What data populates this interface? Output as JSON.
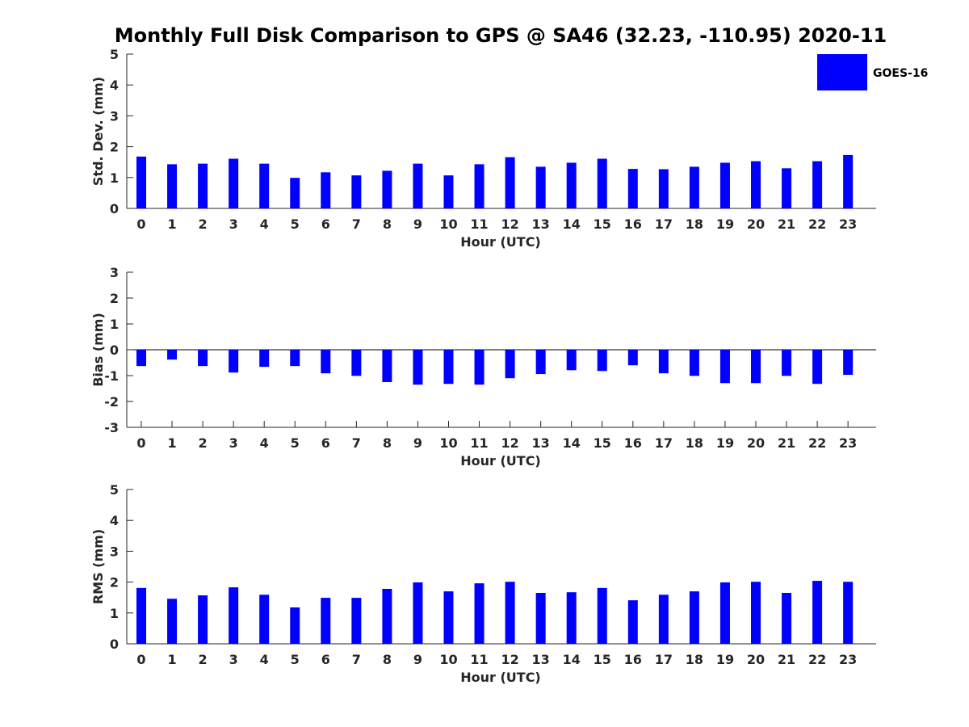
{
  "figure": {
    "title": "Monthly Full Disk Comparison to GPS @ SA46 (32.23, -110.95) 2020-11"
  },
  "legend": {
    "label": "GOES-16",
    "color": "#0000ff"
  },
  "chart_data": [
    {
      "type": "bar",
      "name": "std-dev",
      "xlabel": "Hour (UTC)",
      "ylabel": "Std. Dev. (mm)",
      "ylim": [
        0,
        5
      ],
      "yticks": [
        0,
        1,
        2,
        3,
        4,
        5
      ],
      "grid": false,
      "legend": "top-right",
      "categories": [
        "0",
        "1",
        "2",
        "3",
        "4",
        "5",
        "6",
        "7",
        "8",
        "9",
        "10",
        "11",
        "12",
        "13",
        "14",
        "15",
        "16",
        "17",
        "18",
        "19",
        "20",
        "21",
        "22",
        "23"
      ],
      "series": [
        {
          "name": "GOES-16",
          "color": "#0000ff",
          "values": [
            1.68,
            1.43,
            1.45,
            1.61,
            1.45,
            0.99,
            1.17,
            1.07,
            1.22,
            1.45,
            1.07,
            1.43,
            1.66,
            1.35,
            1.48,
            1.61,
            1.28,
            1.27,
            1.35,
            1.48,
            1.53,
            1.3,
            1.53,
            1.73
          ]
        }
      ]
    },
    {
      "type": "bar",
      "name": "bias",
      "xlabel": "Hour (UTC)",
      "ylabel": "Bias (mm)",
      "ylim": [
        -3,
        3
      ],
      "yticks": [
        -3,
        -2,
        -1,
        0,
        1,
        2,
        3
      ],
      "grid": false,
      "categories": [
        "0",
        "1",
        "2",
        "3",
        "4",
        "5",
        "6",
        "7",
        "8",
        "9",
        "10",
        "11",
        "12",
        "13",
        "14",
        "15",
        "16",
        "17",
        "18",
        "19",
        "20",
        "21",
        "22",
        "23"
      ],
      "series": [
        {
          "name": "GOES-16",
          "color": "#0000ff",
          "values": [
            -0.63,
            -0.38,
            -0.63,
            -0.88,
            -0.66,
            -0.63,
            -0.91,
            -1.01,
            -1.25,
            -1.35,
            -1.32,
            -1.35,
            -1.1,
            -0.94,
            -0.79,
            -0.82,
            -0.6,
            -0.91,
            -1.01,
            -1.29,
            -1.29,
            -1.01,
            -1.32,
            -0.97
          ]
        }
      ]
    },
    {
      "type": "bar",
      "name": "rms",
      "xlabel": "Hour (UTC)",
      "ylabel": "RMS (mm)",
      "ylim": [
        0,
        5
      ],
      "yticks": [
        0,
        1,
        2,
        3,
        4,
        5
      ],
      "grid": false,
      "categories": [
        "0",
        "1",
        "2",
        "3",
        "4",
        "5",
        "6",
        "7",
        "8",
        "9",
        "10",
        "11",
        "12",
        "13",
        "14",
        "15",
        "16",
        "17",
        "18",
        "19",
        "20",
        "21",
        "22",
        "23"
      ],
      "series": [
        {
          "name": "GOES-16",
          "color": "#0000ff",
          "values": [
            1.81,
            1.46,
            1.57,
            1.83,
            1.59,
            1.18,
            1.49,
            1.49,
            1.78,
            1.99,
            1.7,
            1.96,
            2.01,
            1.65,
            1.67,
            1.81,
            1.41,
            1.59,
            1.7,
            1.99,
            2.01,
            1.65,
            2.04,
            2.01
          ]
        }
      ]
    }
  ]
}
